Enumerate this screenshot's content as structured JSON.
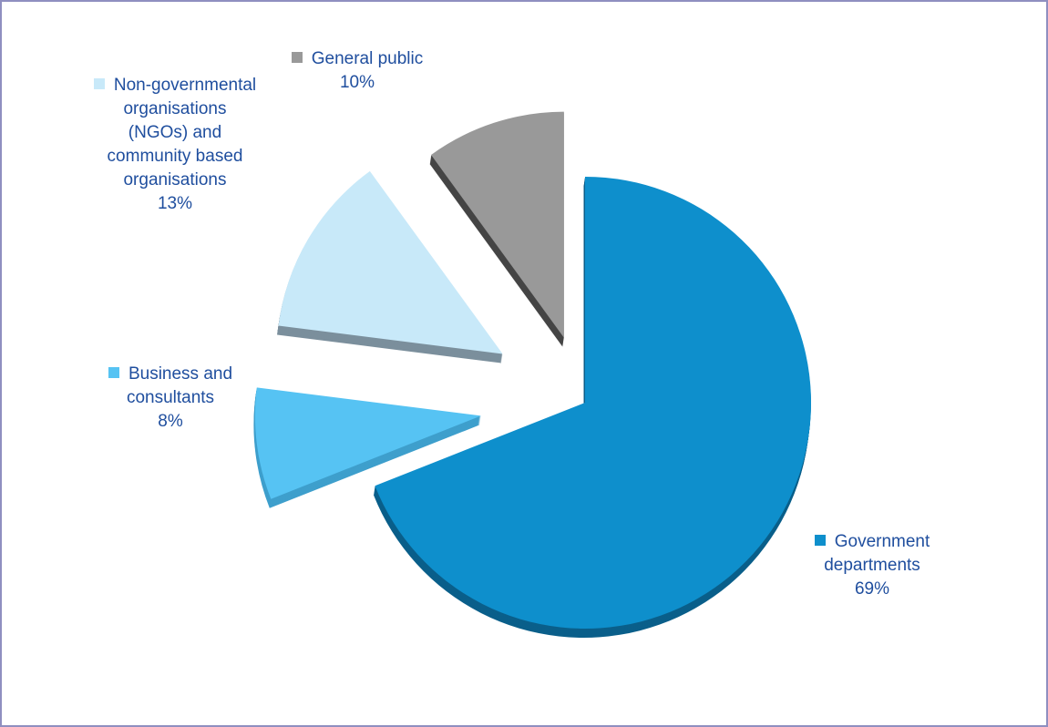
{
  "chart_data": {
    "type": "pie",
    "title": "",
    "slices": [
      {
        "label_lines": [
          "Government",
          "departments"
        ],
        "percent_label": "69%",
        "value": 69,
        "color": "#0e8fcc",
        "side_color": "#0a5f8a"
      },
      {
        "label_lines": [
          "Business and",
          "consultants"
        ],
        "percent_label": "8%",
        "value": 8,
        "color": "#56c3f3",
        "side_color": "#3e9fcc"
      },
      {
        "label_lines": [
          "Non-governmental",
          "organisations",
          "(NGOs) and",
          "community based",
          "organisations"
        ],
        "percent_label": "13%",
        "value": 13,
        "color": "#c8e9f9",
        "side_color": "#7b8f9c"
      },
      {
        "label_lines": [
          "General public"
        ],
        "percent_label": "10%",
        "value": 10,
        "color": "#999999",
        "side_color": "#454545"
      }
    ]
  }
}
